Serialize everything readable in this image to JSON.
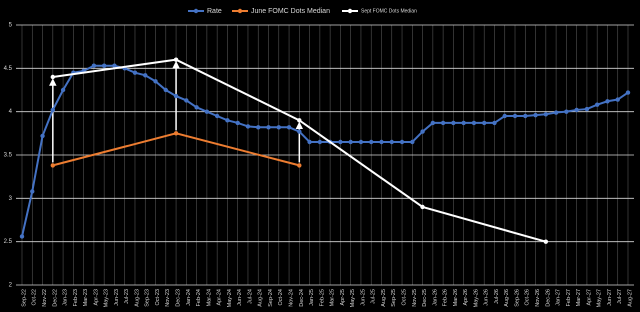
{
  "chart_data": {
    "type": "line",
    "categories": [
      "Sep-22",
      "Oct-22",
      "Nov-22",
      "Dec-22",
      "Jan-23",
      "Feb-23",
      "Mar-23",
      "Apr-23",
      "May-23",
      "Jun-23",
      "Jul-23",
      "Aug-23",
      "Sep-23",
      "Oct-23",
      "Nov-23",
      "Dec-23",
      "Jan-24",
      "Feb-24",
      "Mar-24",
      "Apr-24",
      "May-24",
      "Jun-24",
      "Jul-24",
      "Aug-24",
      "Sep-24",
      "Oct-24",
      "Nov-24",
      "Dec-24",
      "Jan-25",
      "Feb-25",
      "Mar-25",
      "Apr-25",
      "May-25",
      "Jun-25",
      "Jul-25",
      "Aug-25",
      "Sep-25",
      "Oct-25",
      "Nov-25",
      "Dec-25",
      "Jan-26",
      "Feb-26",
      "Mar-26",
      "Apr-26",
      "May-26",
      "Jun-26",
      "Jul-26",
      "Aug-26",
      "Sep-26",
      "Oct-26",
      "Nov-26",
      "Dec-26",
      "Jan-27",
      "Feb-27",
      "Mar-27",
      "Apr-27",
      "May-27",
      "Jun-27",
      "Jul-27",
      "Aug-27"
    ],
    "series": [
      {
        "name": "Rate",
        "color": "#4472c4",
        "values": [
          2.56,
          3.08,
          3.72,
          4.02,
          4.25,
          4.45,
          4.47,
          4.53,
          4.53,
          4.53,
          4.5,
          4.45,
          4.42,
          4.35,
          4.25,
          4.18,
          4.13,
          4.05,
          4.0,
          3.95,
          3.9,
          3.87,
          3.83,
          3.82,
          3.82,
          3.82,
          3.82,
          3.77,
          3.65,
          3.65,
          3.65,
          3.65,
          3.65,
          3.65,
          3.65,
          3.65,
          3.65,
          3.65,
          3.65,
          3.77,
          3.87,
          3.87,
          3.87,
          3.87,
          3.87,
          3.87,
          3.87,
          3.95,
          3.95,
          3.95,
          3.96,
          3.97,
          3.99,
          4.0,
          4.02,
          4.03,
          4.08,
          4.12,
          4.14,
          4.22
        ]
      },
      {
        "name": "June FOMC Dots Median",
        "color": "#ed7d31",
        "x": [
          "Dec-22",
          "Dec-23",
          "Dec-24"
        ],
        "values": [
          3.38,
          3.75,
          3.38
        ]
      },
      {
        "name": "Sept FOMC Dots Median",
        "color": "#ffffff",
        "x": [
          "Dec-22",
          "Dec-23",
          "Dec-24",
          "Dec-25",
          "Dec-26"
        ],
        "values": [
          4.4,
          4.6,
          3.9,
          2.9,
          2.5
        ]
      }
    ],
    "ylim": [
      2,
      5
    ],
    "yticks": [
      2,
      2.5,
      3,
      3.5,
      4,
      4.5,
      5
    ],
    "grid": true
  }
}
